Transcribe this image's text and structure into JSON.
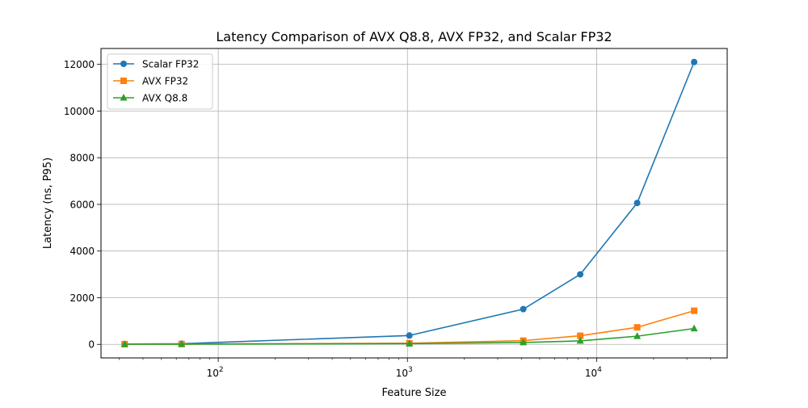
{
  "chart_data": {
    "type": "line",
    "title": "Latency Comparison of AVX Q8.8, AVX FP32, and Scalar FP32",
    "xlabel": "Feature Size",
    "ylabel": "Latency (ns, P95)",
    "xscale": "log",
    "xlim": [
      24,
      49000
    ],
    "ylim": [
      -580,
      12680
    ],
    "grid": true,
    "legend_position": "top-left",
    "x_ticks": [
      {
        "value": 100,
        "base": "10",
        "exp": "2"
      },
      {
        "value": 1000,
        "base": "10",
        "exp": "3"
      },
      {
        "value": 10000,
        "base": "10",
        "exp": "4"
      }
    ],
    "y_ticks": [
      0,
      2000,
      4000,
      6000,
      8000,
      10000,
      12000
    ],
    "x": [
      32,
      64,
      1024,
      4096,
      8192,
      16384,
      32768
    ],
    "series": [
      {
        "name": "Scalar FP32",
        "color": "#1f77b4",
        "marker": "circle",
        "values": [
          15,
          30,
          380,
          1510,
          3000,
          6060,
          12100
        ]
      },
      {
        "name": "AVX FP32",
        "color": "#ff7f0e",
        "marker": "square",
        "values": [
          10,
          15,
          50,
          160,
          370,
          730,
          1440
        ]
      },
      {
        "name": "AVX Q8.8",
        "color": "#2ca02c",
        "marker": "triangle",
        "values": [
          5,
          8,
          30,
          80,
          150,
          350,
          680
        ]
      }
    ]
  }
}
